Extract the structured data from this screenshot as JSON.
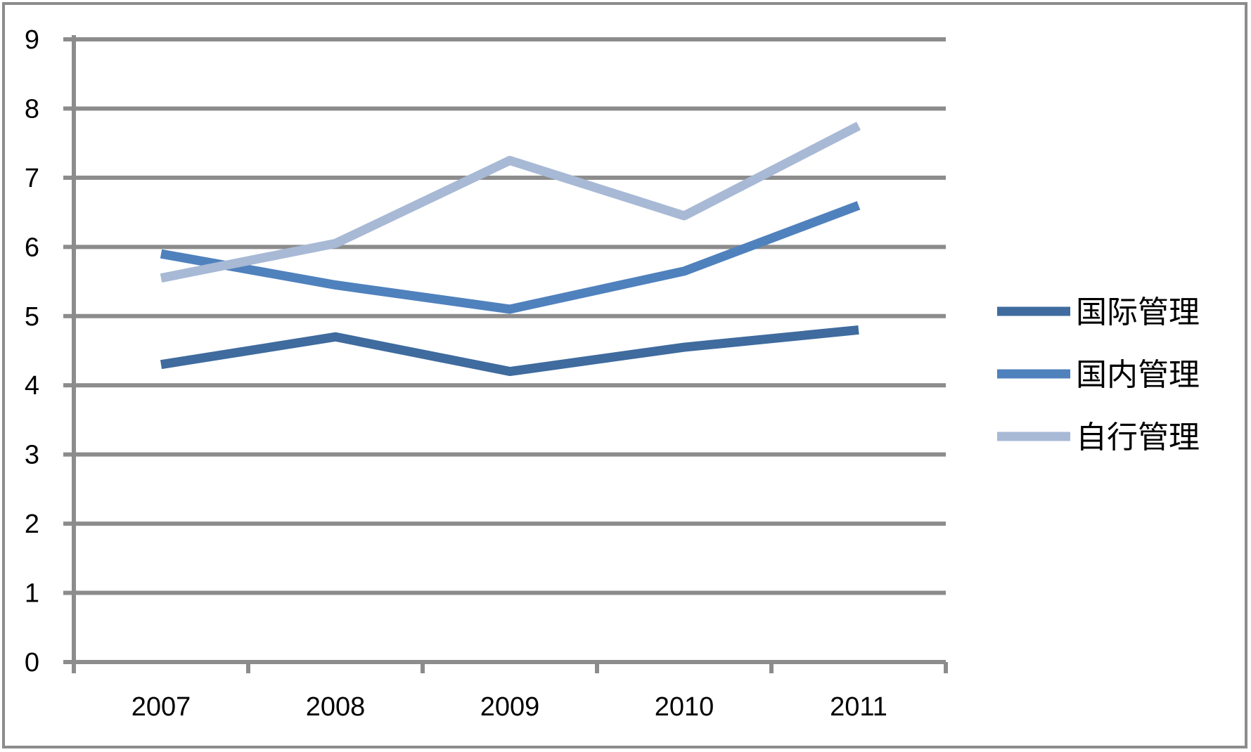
{
  "chart_data": {
    "type": "line",
    "categories": [
      "2007",
      "2008",
      "2009",
      "2010",
      "2011"
    ],
    "series": [
      {
        "name": "国际管理",
        "values": [
          4.3,
          4.7,
          4.2,
          4.55,
          4.8
        ],
        "color": "#3f6b9e"
      },
      {
        "name": "国内管理",
        "values": [
          5.9,
          5.45,
          5.1,
          5.65,
          6.6
        ],
        "color": "#4f81bd"
      },
      {
        "name": "自行管理",
        "values": [
          5.55,
          6.05,
          7.25,
          6.45,
          7.75
        ],
        "color": "#a7b9d5"
      }
    ],
    "y_ticks": [
      "0",
      "1",
      "2",
      "3",
      "4",
      "5",
      "6",
      "7",
      "8",
      "9"
    ],
    "ylim": [
      0,
      9
    ],
    "grid": true,
    "legend": "right",
    "gridline_color": "#8c8c8c"
  }
}
